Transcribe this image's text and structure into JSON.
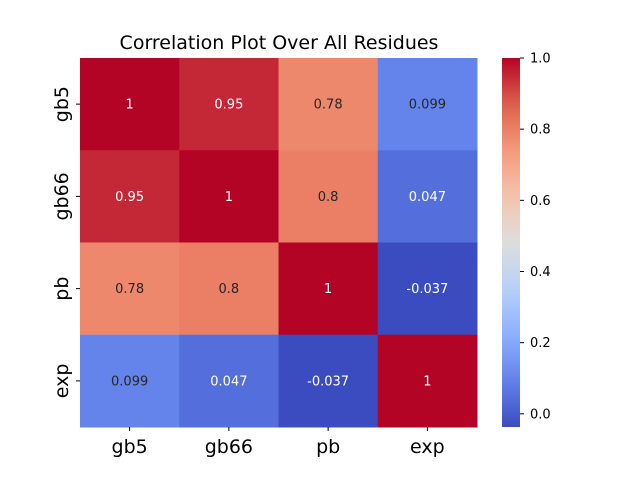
{
  "chart_data": {
    "type": "heatmap",
    "title": "Correlation Plot Over All Residues",
    "x_categories": [
      "gb5",
      "gb66",
      "pb",
      "exp"
    ],
    "y_categories": [
      "gb5",
      "gb66",
      "pb",
      "exp"
    ],
    "values": [
      [
        1,
        0.95,
        0.78,
        0.099
      ],
      [
        0.95,
        1,
        0.8,
        0.047
      ],
      [
        0.78,
        0.8,
        1,
        -0.037
      ],
      [
        0.099,
        0.047,
        -0.037,
        1
      ]
    ],
    "value_labels": [
      [
        "1",
        "0.95",
        "0.78",
        "0.099"
      ],
      [
        "0.95",
        "1",
        "0.8",
        "0.047"
      ],
      [
        "0.78",
        "0.8",
        "1",
        "-0.037"
      ],
      [
        "0.099",
        "0.047",
        "-0.037",
        "1"
      ]
    ],
    "colormap": "coolwarm",
    "color_range": [
      -0.037,
      1
    ],
    "colorbar": {
      "ticks": [
        0.0,
        0.2,
        0.4,
        0.6,
        0.8,
        1.0
      ],
      "tick_labels": [
        "0.0",
        "0.2",
        "0.4",
        "0.6",
        "0.8",
        "1.0"
      ]
    }
  }
}
